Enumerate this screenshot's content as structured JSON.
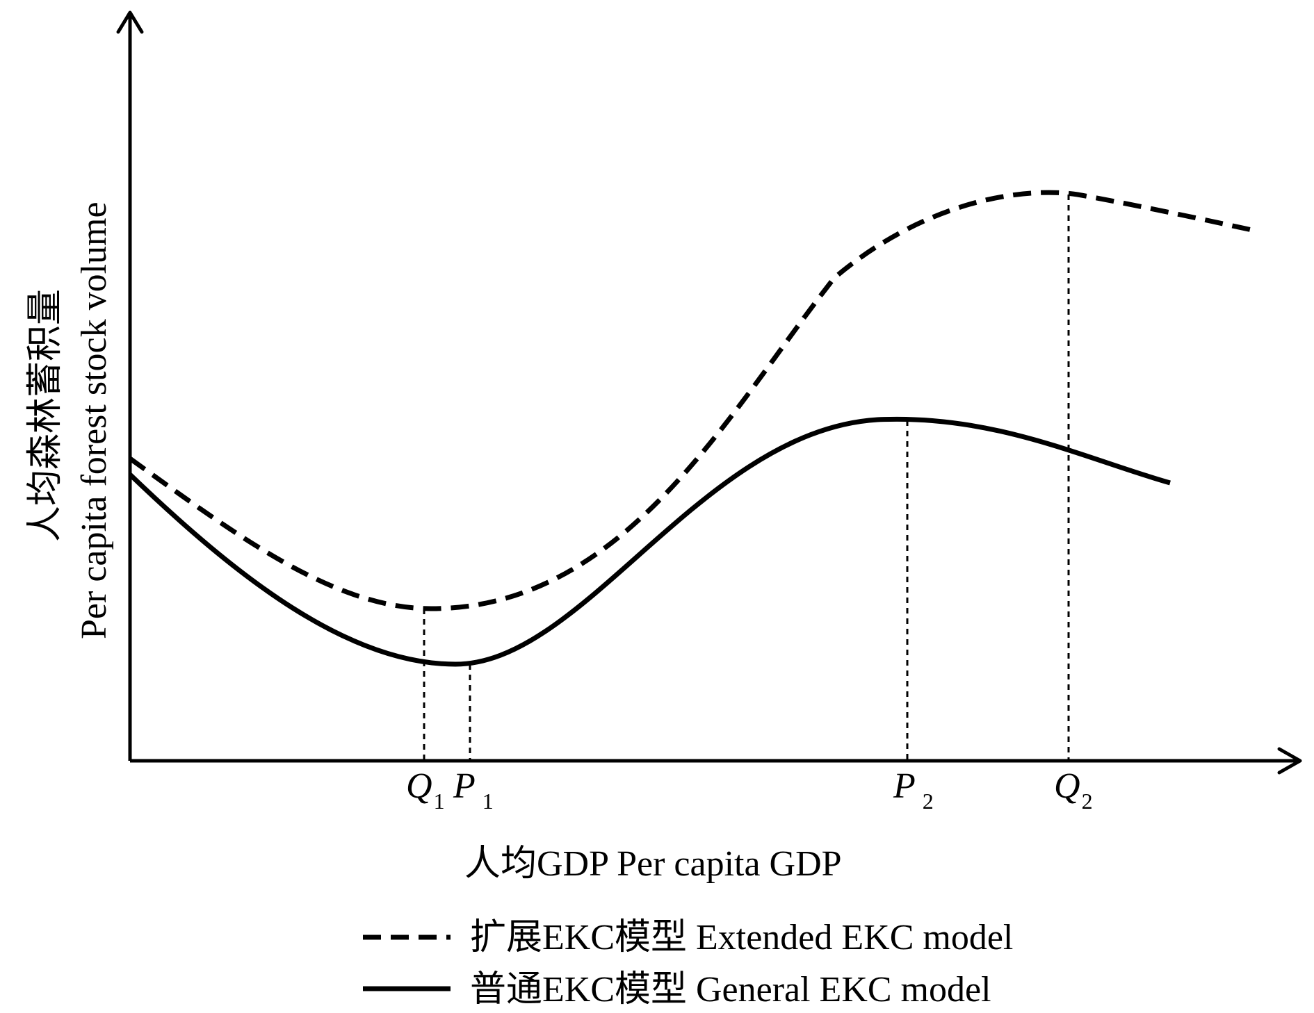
{
  "x_axis": {
    "title": "人均GDP  Per capita GDP"
  },
  "y_axis": {
    "title_cn": "人均森林蓄积量",
    "title_en": "Per capita forest stock volume"
  },
  "points": [
    {
      "key": "Q1",
      "letter": "Q",
      "sub": "1"
    },
    {
      "key": "P1",
      "letter": "P",
      "sub": "1"
    },
    {
      "key": "P2",
      "letter": "P",
      "sub": "2"
    },
    {
      "key": "Q2",
      "letter": "Q",
      "sub": "2"
    }
  ],
  "legend": {
    "items": [
      {
        "key": "extended",
        "label": "扩展EKC模型  Extended EKC model",
        "line_style": "dashed"
      },
      {
        "key": "general",
        "label": "普通EKC模型  General EKC model",
        "line_style": "solid"
      }
    ]
  },
  "colors": {
    "ink": "#000000",
    "background": "#ffffff"
  }
}
